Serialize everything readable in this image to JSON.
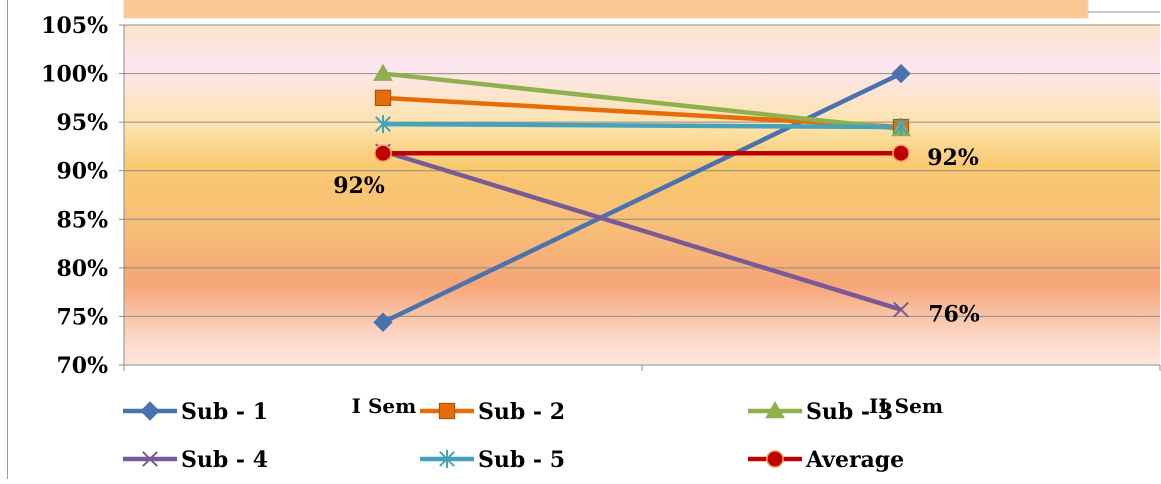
{
  "chart_data": {
    "type": "line",
    "title": "",
    "xlabel": "",
    "ylabel": "",
    "categories": [
      "I Sem",
      "II Sem"
    ],
    "ylim": [
      0.7,
      1.05
    ],
    "yticks": [
      "70%",
      "75%",
      "80%",
      "85%",
      "90%",
      "95%",
      "100%",
      "105%"
    ],
    "grid": true,
    "legend_position": "bottom",
    "series": [
      {
        "name": "Sub - 1",
        "values": [
          0.744,
          1.0
        ],
        "color": "#4A72AE",
        "marker": "diamond"
      },
      {
        "name": "Sub - 2",
        "values": [
          0.975,
          0.945
        ],
        "color": "#E46C0A",
        "marker": "square"
      },
      {
        "name": "Sub - 3",
        "values": [
          1.0,
          0.943
        ],
        "color": "#8EB04D",
        "marker": "triangle"
      },
      {
        "name": "Sub - 4",
        "values": [
          0.92,
          0.757
        ],
        "color": "#7A5A96",
        "marker": "x"
      },
      {
        "name": "Sub - 5",
        "values": [
          0.948,
          0.945
        ],
        "color": "#45A2B8",
        "marker": "asterisk"
      },
      {
        "name": "Average",
        "values": [
          0.918,
          0.918
        ],
        "color": "#C00000",
        "marker": "circle"
      }
    ],
    "data_labels": [
      {
        "series": "Average",
        "point": 0,
        "text": "92%"
      },
      {
        "series": "Average",
        "point": 1,
        "text": "92%"
      },
      {
        "series": "Sub - 4",
        "point": 1,
        "text": "76%"
      }
    ]
  }
}
